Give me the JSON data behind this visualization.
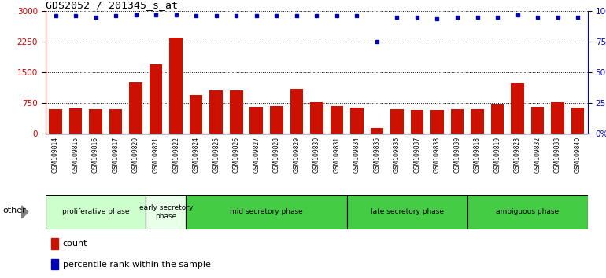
{
  "title": "GDS2052 / 201345_s_at",
  "samples": [
    "GSM109814",
    "GSM109815",
    "GSM109816",
    "GSM109817",
    "GSM109820",
    "GSM109821",
    "GSM109822",
    "GSM109824",
    "GSM109825",
    "GSM109826",
    "GSM109827",
    "GSM109828",
    "GSM109829",
    "GSM109830",
    "GSM109831",
    "GSM109834",
    "GSM109835",
    "GSM109836",
    "GSM109837",
    "GSM109838",
    "GSM109839",
    "GSM109818",
    "GSM109819",
    "GSM109823",
    "GSM109832",
    "GSM109833",
    "GSM109840"
  ],
  "counts": [
    590,
    620,
    600,
    600,
    1260,
    1700,
    2350,
    950,
    1060,
    1050,
    650,
    680,
    1100,
    760,
    680,
    640,
    130,
    590,
    570,
    580,
    590,
    590,
    720,
    1230,
    660,
    760,
    640
  ],
  "percentile": [
    96,
    96,
    95,
    96,
    97,
    97,
    97,
    96,
    96,
    96,
    96,
    96,
    96,
    96,
    96,
    96,
    75,
    95,
    95,
    94,
    95,
    95,
    95,
    97,
    95,
    95,
    95
  ],
  "phases": [
    {
      "label": "proliferative phase",
      "start": 0,
      "end": 5,
      "color": "#ccffcc"
    },
    {
      "label": "early secretory\nphase",
      "start": 5,
      "end": 7,
      "color": "#e8ffe8"
    },
    {
      "label": "mid secretory phase",
      "start": 7,
      "end": 15,
      "color": "#44cc44"
    },
    {
      "label": "late secretory phase",
      "start": 15,
      "end": 21,
      "color": "#44cc44"
    },
    {
      "label": "ambiguous phase",
      "start": 21,
      "end": 27,
      "color": "#44cc44"
    }
  ],
  "ylim_left": [
    0,
    3000
  ],
  "ylim_right": [
    0,
    100
  ],
  "yticks_left": [
    0,
    750,
    1500,
    2250,
    3000
  ],
  "yticks_right": [
    0,
    25,
    50,
    75,
    100
  ],
  "bar_color": "#cc1100",
  "dot_color": "#0000bb",
  "plot_bg": "#ffffff",
  "fig_bg": "#ffffff",
  "tick_label_bg": "#d8d8d8"
}
